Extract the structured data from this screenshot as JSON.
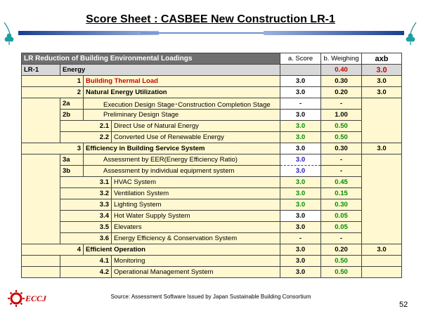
{
  "title": "Score Sheet : CASBEE New Construction LR-1",
  "header": {
    "section": "LR Reduction of Building Environmental Loadings",
    "col_score": "a. Score",
    "col_weight": "b. Weighing",
    "col_axb": "axb"
  },
  "category": {
    "code": "LR-1",
    "name": "Energy",
    "weight": "0.40",
    "axb": "3.0"
  },
  "rows": [
    {
      "num": "1",
      "label": "Building Thermal Load",
      "score": "3.0",
      "weight": "0.30",
      "axb": "3.0"
    },
    {
      "num": "2",
      "label": "Natural Energy Utilization",
      "score": "3.0",
      "weight": "0.20",
      "axb": "3.0"
    },
    {
      "code": "2a",
      "label": "Execution Design Stage･Construction Completion Stage",
      "score": "-",
      "weight": "-"
    },
    {
      "code": "2b",
      "label": "Preliminary Design Stage",
      "score": "3.0",
      "weight": "1.00"
    },
    {
      "num": "2.1",
      "label": "Direct Use of Natural Energy",
      "score": "3.0",
      "weight": "0.50"
    },
    {
      "num": "2.2",
      "label": "Converted Use of Renewable Energy",
      "score": "3.0",
      "weight": "0.50"
    },
    {
      "num": "3",
      "label": "Efficiency in Building Service System",
      "score": "3.0",
      "weight": "0.30",
      "axb": "3.0"
    },
    {
      "code": "3a",
      "label": "Assessment by EER(Energy Efficiency Ratio)",
      "score": "3.0",
      "weight": "-"
    },
    {
      "code": "3b",
      "label": "Assessment by individual equipment system",
      "score": "3.0",
      "weight": "-"
    },
    {
      "num": "3.1",
      "label": "HVAC System",
      "score": "3.0",
      "weight": "0.45"
    },
    {
      "num": "3.2",
      "label": "Ventilation System",
      "score": "3.0",
      "weight": "0.15"
    },
    {
      "num": "3.3",
      "label": "Lighting System",
      "score": "3.0",
      "weight": "0.30"
    },
    {
      "num": "3.4",
      "label": "Hot Water Supply System",
      "score": "3.0",
      "weight": "0.05"
    },
    {
      "num": "3.5",
      "label": "Elevaters",
      "score": "3.0",
      "weight": "0.05"
    },
    {
      "num": "3.6",
      "label": "Energy Efficiency & Conservation System",
      "score": "-",
      "weight": "-"
    },
    {
      "num": "4",
      "label": "Efficient Operation",
      "score": "3.0",
      "weight": "0.20",
      "axb": "3.0"
    },
    {
      "num": "4.1",
      "label": "Monitoring",
      "score": "3.0",
      "weight": "0.50"
    },
    {
      "num": "4.2",
      "label": "Operational Management System",
      "score": "3.0",
      "weight": "0.50"
    }
  ],
  "footer": {
    "source": "Source: Assessment Software Issued by Japan Sustainable Building Consortium"
  },
  "logo_text": "ECCJ",
  "page_number": "52"
}
